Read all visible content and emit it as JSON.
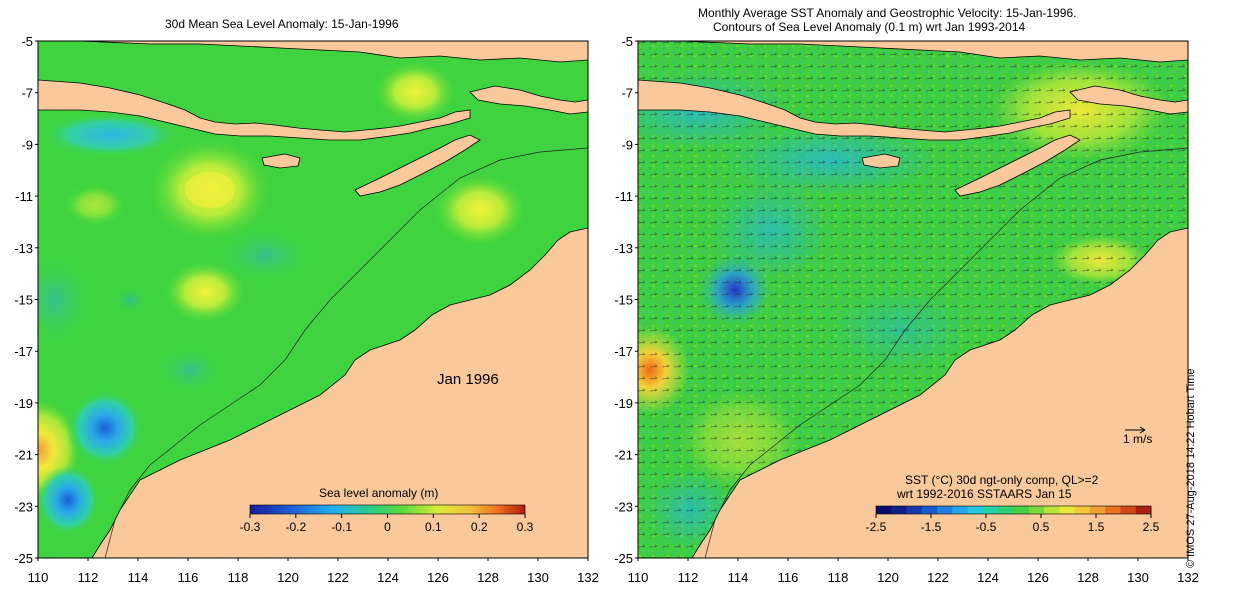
{
  "left_panel": {
    "title": "30d Mean Sea Level Anomaly: 15-Jan-1996",
    "date_label": "Jan 1996",
    "colorbar": {
      "label": "Sea level anomaly (m)",
      "ticks": [
        "-0.3",
        "-0.2",
        "-0.1",
        "0",
        "0.1",
        "0.2",
        "0.3"
      ]
    }
  },
  "right_panel": {
    "title_line1": "Monthly Average SST Anomaly  and Geostrophic Velocity: 15-Jan-1996.",
    "title_line2": "Contours of Sea Level Anomaly (0.1 m) wrt Jan 1993-2014",
    "vector_scale": "1 m/s",
    "legend_line1": "SST (°C) 30d ngt-only comp, QL>=2",
    "legend_line2": "wrt 1992-2016 SSTAARS Jan 15",
    "colorbar": {
      "ticks": [
        "-2.5",
        "-1.5",
        "-0.5",
        "0.5",
        "1.5",
        "2.5"
      ]
    }
  },
  "axes": {
    "lat_ticks": [
      "-5",
      "-7",
      "-9",
      "-11",
      "-13",
      "-15",
      "-17",
      "-19",
      "-21",
      "-23",
      "-25"
    ],
    "lon_ticks": [
      "110",
      "112",
      "114",
      "116",
      "118",
      "120",
      "122",
      "124",
      "126",
      "128",
      "130",
      "132"
    ]
  },
  "credit": "© IMOS 27-Aug-2018 14:22 Hobart Time",
  "colors": {
    "land": "#f9c89b",
    "ocean": "#3fd43f",
    "coast": "#000000"
  }
}
